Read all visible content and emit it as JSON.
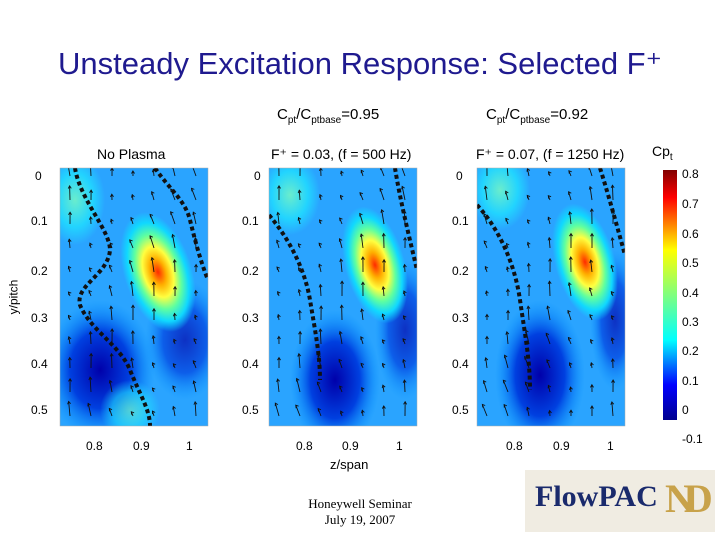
{
  "slide": {
    "title": "Unsteady Excitation Response: Selected F⁺",
    "ratio_labels": [
      {
        "main": "C",
        "sub1": "pt",
        "sep": "/C",
        "sub2": "ptbase",
        "val": "=0.95"
      },
      {
        "main": "C",
        "sub1": "pt",
        "sep": "/C",
        "sub2": "ptbase",
        "val": "=0.92"
      }
    ],
    "panel_titles": [
      "No Plasma",
      "F⁺ = 0.03, (f = 500 Hz)",
      "F⁺ = 0.07, (f = 1250 Hz)"
    ],
    "y_axis_label": "y/pitch",
    "x_axis_label": "z/span",
    "y_ticks": [
      "0",
      "0.1",
      "0.2",
      "0.3",
      "0.4",
      "0.5"
    ],
    "x_ticks": [
      "0.8",
      "0.9",
      "1"
    ],
    "colorbar": {
      "title_main": "Cp",
      "title_sub": "t",
      "ticks": [
        "0.8",
        "0.7",
        "0.6",
        "0.5",
        "0.4",
        "0.3",
        "0.2",
        "0.1",
        "0",
        "-0.1"
      ]
    },
    "footer": {
      "line1": "Honeywell Seminar",
      "line2": "July 19, 2007"
    },
    "logo_text": "FlowPAC",
    "colors": {
      "title": "#1f1a8f",
      "logo": "#1a2a6c",
      "dashed_contour": "#111111"
    }
  }
}
